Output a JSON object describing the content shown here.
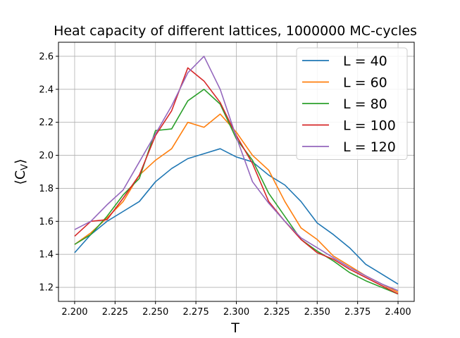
{
  "chart_data": {
    "type": "line",
    "title": "Heat capacity of different lattices, 1000000 MC-cycles",
    "xlabel": "T",
    "ylabel": "⟨C_V⟩",
    "xlim": [
      2.19,
      2.41
    ],
    "ylim": [
      1.115,
      2.685
    ],
    "grid": true,
    "legend_position": "top-right",
    "x_ticks": [
      2.2,
      2.225,
      2.25,
      2.275,
      2.3,
      2.325,
      2.35,
      2.375,
      2.4
    ],
    "x_tick_labels": [
      "2.200",
      "2.225",
      "2.250",
      "2.275",
      "2.300",
      "2.325",
      "2.350",
      "2.375",
      "2.400"
    ],
    "y_ticks": [
      1.2,
      1.4,
      1.6,
      1.8,
      2.0,
      2.2,
      2.4,
      2.6
    ],
    "y_tick_labels": [
      "1.2",
      "1.4",
      "1.6",
      "1.8",
      "2.0",
      "2.2",
      "2.4",
      "2.6"
    ],
    "x": [
      2.2,
      2.21,
      2.22,
      2.23,
      2.24,
      2.25,
      2.26,
      2.27,
      2.28,
      2.29,
      2.3,
      2.31,
      2.32,
      2.33,
      2.34,
      2.35,
      2.36,
      2.37,
      2.38,
      2.39,
      2.4
    ],
    "series": [
      {
        "name": "L = 40",
        "color": "#1f77b4",
        "values": [
          1.41,
          1.52,
          1.6,
          1.66,
          1.72,
          1.84,
          1.92,
          1.98,
          2.01,
          2.04,
          1.99,
          1.96,
          1.88,
          1.82,
          1.72,
          1.59,
          1.52,
          1.44,
          1.34,
          1.28,
          1.22
        ]
      },
      {
        "name": "L = 60",
        "color": "#ff7f0e",
        "values": [
          1.46,
          1.53,
          1.62,
          1.72,
          1.88,
          1.97,
          2.04,
          2.2,
          2.17,
          2.25,
          2.14,
          2.0,
          1.91,
          1.72,
          1.56,
          1.49,
          1.39,
          1.33,
          1.27,
          1.22,
          1.17
        ]
      },
      {
        "name": "L = 80",
        "color": "#2ca02c",
        "values": [
          1.46,
          1.52,
          1.63,
          1.76,
          1.86,
          2.15,
          2.16,
          2.33,
          2.4,
          2.31,
          2.1,
          1.97,
          1.77,
          1.63,
          1.49,
          1.42,
          1.36,
          1.29,
          1.24,
          1.2,
          1.16
        ]
      },
      {
        "name": "L = 100",
        "color": "#d62728",
        "values": [
          1.51,
          1.6,
          1.61,
          1.74,
          1.88,
          2.12,
          2.27,
          2.53,
          2.45,
          2.32,
          2.12,
          1.95,
          1.72,
          1.6,
          1.49,
          1.41,
          1.37,
          1.31,
          1.26,
          1.21,
          1.16
        ]
      },
      {
        "name": "L = 120",
        "color": "#9467bd",
        "values": [
          1.55,
          1.6,
          1.7,
          1.79,
          1.96,
          2.13,
          2.3,
          2.5,
          2.6,
          2.4,
          2.11,
          1.84,
          1.71,
          1.6,
          1.5,
          1.44,
          1.38,
          1.32,
          1.27,
          1.22,
          1.18
        ]
      }
    ]
  }
}
